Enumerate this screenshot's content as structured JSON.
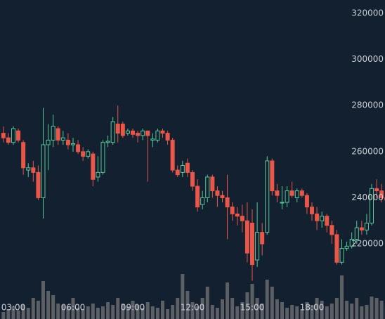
{
  "chart_data": {
    "type": "candlestick",
    "x": [
      2.5,
      2.75,
      3,
      3.25,
      3.5,
      3.75,
      4,
      4.25,
      4.5,
      4.75,
      5,
      5.25,
      5.5,
      5.75,
      6,
      6.25,
      6.5,
      6.75,
      7,
      7.25,
      7.5,
      7.75,
      8,
      8.25,
      8.5,
      8.75,
      9,
      9.25,
      9.5,
      9.75,
      10,
      10.25,
      10.5,
      10.75,
      11,
      11.25,
      11.5,
      11.75,
      12,
      12.25,
      12.5,
      12.75,
      13,
      13.25,
      13.5,
      13.75,
      14,
      14.25,
      14.5,
      14.75,
      15,
      15.25,
      15.5,
      15.75,
      16,
      16.25,
      16.5,
      16.75,
      17,
      17.25,
      17.5,
      17.75,
      18,
      18.25,
      18.5,
      18.75,
      19,
      19.25,
      19.5,
      19.75,
      20,
      20.25,
      20.5,
      20.75,
      21,
      21.25,
      21.5,
      21.75
    ],
    "open": [
      268000,
      266000,
      264000,
      269000,
      264000,
      252000,
      253000,
      251000,
      240000,
      263000,
      265000,
      270000,
      265000,
      265000,
      263000,
      263000,
      260000,
      258000,
      259000,
      249000,
      251000,
      264000,
      264000,
      272000,
      272000,
      268000,
      269000,
      268000,
      267000,
      269000,
      265000,
      265000,
      269000,
      268000,
      265000,
      252000,
      251000,
      255000,
      251000,
      245000,
      237000,
      240000,
      249000,
      243000,
      241000,
      240000,
      236000,
      233000,
      232000,
      230000,
      229000,
      213000,
      225000,
      225000,
      256000,
      243000,
      238000,
      238000,
      243000,
      240000,
      243000,
      241000,
      236000,
      233000,
      230000,
      232000,
      228000,
      224000,
      212000,
      218000,
      219000,
      222000,
      227000,
      226000,
      229000,
      244000,
      243000,
      240000
    ],
    "high": [
      271000,
      268000,
      271000,
      270000,
      265000,
      255000,
      256000,
      254000,
      279000,
      272000,
      276000,
      271000,
      269000,
      268000,
      266000,
      265000,
      262000,
      261000,
      260000,
      258000,
      265000,
      267000,
      275000,
      280000,
      273000,
      270000,
      270000,
      269000,
      270000,
      269000,
      268000,
      270000,
      270000,
      269000,
      266000,
      254000,
      256000,
      257000,
      252000,
      248000,
      243000,
      250000,
      250000,
      245000,
      243000,
      250000,
      238000,
      236000,
      237000,
      238000,
      235000,
      238000,
      229000,
      258000,
      257000,
      246000,
      245000,
      245000,
      247000,
      244000,
      244000,
      242000,
      238000,
      236000,
      234000,
      233000,
      230000,
      226000,
      222000,
      221000,
      225000,
      230000,
      230000,
      233000,
      246000,
      248000,
      246000,
      242000
    ],
    "low": [
      264000,
      263000,
      263000,
      264000,
      250000,
      249000,
      247000,
      239000,
      231000,
      252000,
      262000,
      263000,
      263000,
      261000,
      260000,
      259000,
      256000,
      257000,
      245000,
      247000,
      250000,
      262000,
      263000,
      264000,
      266000,
      267000,
      266000,
      264000,
      265000,
      247000,
      262000,
      264000,
      266000,
      263000,
      251000,
      249000,
      249000,
      249000,
      243000,
      234000,
      235000,
      238000,
      240000,
      236000,
      238000,
      222000,
      230000,
      228000,
      225000,
      212000,
      204000,
      210000,
      215000,
      224000,
      241000,
      238000,
      235000,
      236000,
      240000,
      238000,
      240000,
      233000,
      230000,
      226000,
      227000,
      225000,
      220000,
      211000,
      211000,
      217000,
      218000,
      220000,
      224000,
      224000,
      228000,
      240000,
      238000,
      235000
    ],
    "close": [
      266000,
      264000,
      270000,
      265000,
      253000,
      253000,
      251000,
      240000,
      263000,
      265000,
      271000,
      265000,
      266000,
      263000,
      263500,
      260000,
      258000,
      260000,
      248000,
      251000,
      264000,
      264500,
      273000,
      268000,
      267000,
      269000,
      267500,
      267000,
      269000,
      267000,
      265500,
      269000,
      268000,
      265000,
      252000,
      250000,
      254000,
      251000,
      245000,
      236000,
      240000,
      249000,
      243000,
      241000,
      240000,
      236000,
      233000,
      232000,
      230000,
      216000,
      211000,
      225000,
      220000,
      256000,
      243000,
      241000,
      238000,
      243000,
      241000,
      243000,
      241000,
      236000,
      233000,
      230000,
      232000,
      228000,
      224000,
      212000,
      218000,
      219000,
      222000,
      227000,
      226000,
      229000,
      244000,
      243000,
      240000,
      239000
    ],
    "volume": [
      10,
      14,
      18,
      12,
      20,
      16,
      30,
      26,
      54,
      40,
      34,
      22,
      20,
      18,
      30,
      16,
      14,
      18,
      22,
      16,
      18,
      24,
      20,
      30,
      22,
      18,
      26,
      20,
      16,
      24,
      18,
      16,
      26,
      14,
      20,
      30,
      64,
      40,
      24,
      18,
      30,
      46,
      20,
      16,
      28,
      52,
      30,
      18,
      24,
      38,
      50,
      30,
      22,
      56,
      46,
      28,
      24,
      16,
      20,
      18,
      14,
      24,
      20,
      30,
      26,
      18,
      22,
      30,
      62,
      26,
      22,
      30,
      18,
      20,
      32,
      30,
      26,
      18
    ],
    "up_color": "#57c99a",
    "down_color": "#e8574a",
    "volume_color": "#5c5f63",
    "xlim": [
      2.33,
      21.67
    ],
    "ylim": [
      187400,
      325800
    ],
    "xticks": [
      {
        "value": 3,
        "label": "03:00"
      },
      {
        "value": 6,
        "label": "06:00"
      },
      {
        "value": 9,
        "label": "09:00"
      },
      {
        "value": 12,
        "label": "12:00"
      },
      {
        "value": 15,
        "label": "15:00"
      },
      {
        "value": 18,
        "label": "18:00"
      }
    ],
    "yticks": [
      220000,
      240000,
      260000,
      280000,
      300000,
      320000
    ]
  }
}
